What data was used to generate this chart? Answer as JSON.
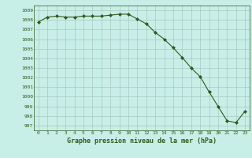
{
  "x": [
    0,
    1,
    2,
    3,
    4,
    5,
    6,
    7,
    8,
    9,
    10,
    11,
    12,
    13,
    14,
    15,
    16,
    17,
    18,
    19,
    20,
    21,
    22,
    23
  ],
  "y": [
    1007.8,
    1008.3,
    1008.4,
    1008.3,
    1008.3,
    1008.4,
    1008.4,
    1008.4,
    1008.5,
    1008.6,
    1008.6,
    1008.1,
    1007.6,
    1006.7,
    1006.0,
    1005.1,
    1004.1,
    1003.0,
    1002.1,
    1000.5,
    999.0,
    997.5,
    997.3,
    998.5
  ],
  "line_color": "#2d5a1b",
  "marker_color": "#2d5a1b",
  "bg_color": "#c8eee8",
  "grid_color": "#a8c8c0",
  "xlabel": "Graphe pression niveau de la mer (hPa)",
  "xlabel_color": "#2d5a1b",
  "tick_color": "#2d5a1b",
  "ylim": [
    996.5,
    1009.5
  ],
  "xlim": [
    -0.5,
    23.5
  ],
  "yticks": [
    997,
    998,
    999,
    1000,
    1001,
    1002,
    1003,
    1004,
    1005,
    1006,
    1007,
    1008,
    1009
  ],
  "xticks": [
    0,
    1,
    2,
    3,
    4,
    5,
    6,
    7,
    8,
    9,
    10,
    11,
    12,
    13,
    14,
    15,
    16,
    17,
    18,
    19,
    20,
    21,
    22,
    23
  ]
}
